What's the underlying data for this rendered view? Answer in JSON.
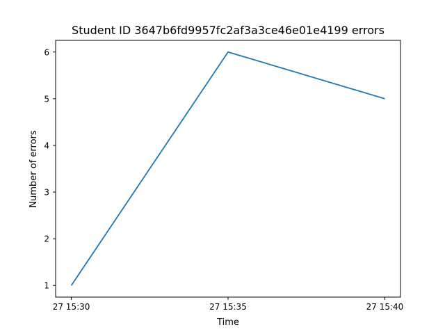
{
  "chart_data": {
    "type": "line",
    "title": "Student ID 3647b6fd9957fc2af3a3ce46e01e4199 errors",
    "xlabel": "Time",
    "ylabel": "Number of errors",
    "x": [
      "27 15:30",
      "27 15:35",
      "27 15:40"
    ],
    "xticks": [
      "27 15:30",
      "27 15:35",
      "27 15:40"
    ],
    "yticks": [
      1,
      2,
      3,
      4,
      5,
      6
    ],
    "ylim": [
      0.75,
      6.25
    ],
    "grid": false,
    "series": [
      {
        "values": [
          1,
          6,
          5
        ],
        "color": "#1f77b4"
      }
    ]
  }
}
